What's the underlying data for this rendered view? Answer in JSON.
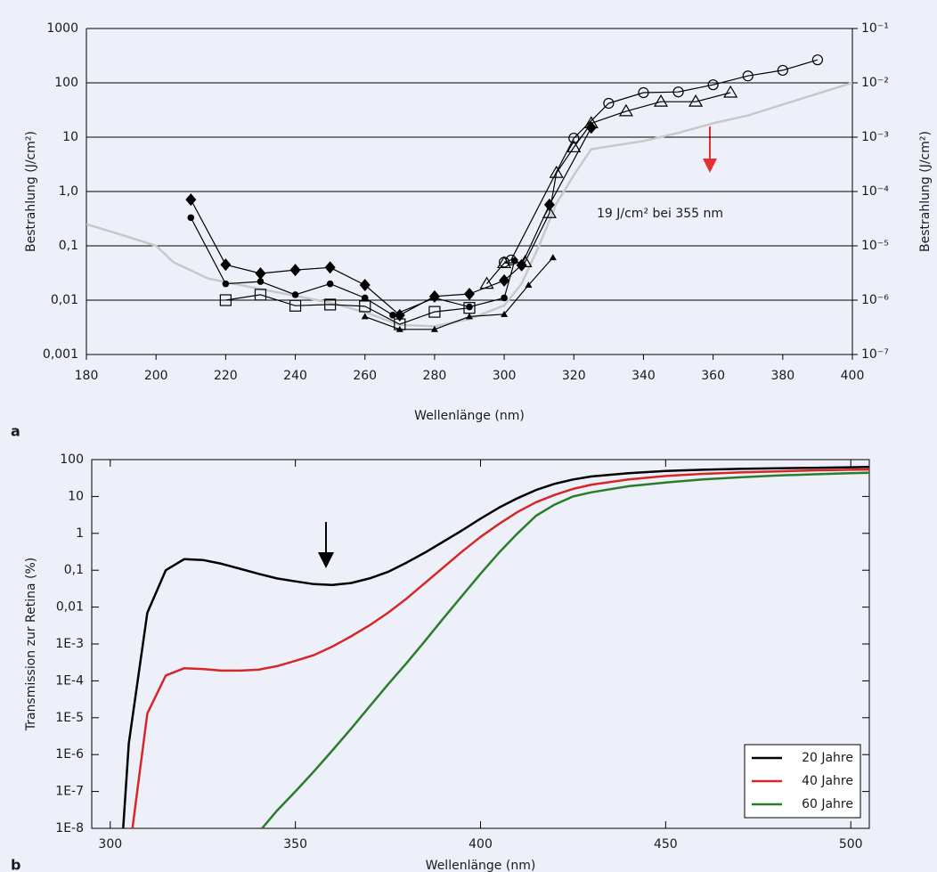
{
  "chart_data": [
    {
      "type": "line",
      "panel": "a",
      "xlabel": "Wellenlänge (nm)",
      "ylabel": "Bestrahlung (J/cm²)",
      "y2label": "Bestrahlung (J/cm²)",
      "annotation": "19 J/cm² bei 355 nm",
      "xlim": [
        180,
        400
      ],
      "xticks": [
        180,
        200,
        220,
        240,
        260,
        280,
        300,
        320,
        340,
        360,
        380,
        400
      ],
      "ylim": [
        0.001,
        1000
      ],
      "ylog": true,
      "grid": true,
      "yticks": [
        {
          "value": 0.001,
          "label": "0,001"
        },
        {
          "value": 0.01,
          "label": "0,01"
        },
        {
          "value": 0.1,
          "label": "0,1"
        },
        {
          "value": 1,
          "label": "1,0"
        },
        10,
        100,
        1000
      ],
      "y2lim": [
        1e-07,
        0.1
      ],
      "y2ticks": [
        {
          "value": 1e-07,
          "label": "10⁻⁷"
        },
        {
          "value": 1e-06,
          "label": "10⁻⁶"
        },
        {
          "value": 1e-05,
          "label": "10⁻⁵"
        },
        {
          "value": 0.0001,
          "label": "10⁻⁴"
        },
        {
          "value": 0.001,
          "label": "10⁻³"
        },
        {
          "value": 0.01,
          "label": "10⁻²"
        },
        {
          "value": 0.1,
          "label": "10⁻¹"
        }
      ],
      "series": [
        {
          "color": "#c8c8c8",
          "marker": "none",
          "x": [
            180,
            190,
            200,
            205,
            215,
            230,
            250,
            260,
            270,
            280,
            290,
            300,
            305,
            310,
            315,
            320,
            325,
            340,
            350,
            360,
            370,
            380,
            400
          ],
          "values": [
            0.25,
            0.16,
            0.1,
            0.05,
            0.025,
            0.016,
            0.009,
            0.006,
            0.0035,
            0.0033,
            0.0045,
            0.008,
            0.02,
            0.1,
            0.6,
            2,
            6,
            8.5,
            12,
            18,
            25,
            40,
            100
          ]
        },
        {
          "color": "#000000",
          "marker": "diamond",
          "x": [
            210,
            220,
            230,
            240,
            250,
            260,
            270,
            280,
            290,
            300,
            305,
            313,
            325
          ],
          "values": [
            0.71,
            0.045,
            0.031,
            0.036,
            0.04,
            0.019,
            0.0053,
            0.0117,
            0.013,
            0.023,
            0.044,
            0.57,
            15
          ]
        },
        {
          "color": "#000000",
          "marker": "dot",
          "x": [
            210,
            220,
            230,
            240,
            250,
            260,
            268,
            280,
            290,
            300,
            303
          ],
          "values": [
            0.33,
            0.02,
            0.022,
            0.0126,
            0.02,
            0.011,
            0.0053,
            0.011,
            0.0075,
            0.011,
            0.053
          ]
        },
        {
          "color": "#000000",
          "marker": "small-triangle",
          "x": [
            260,
            270,
            280,
            290,
            300,
            307,
            314
          ],
          "values": [
            0.005,
            0.0029,
            0.0029,
            0.005,
            0.0055,
            0.019,
            0.061
          ]
        },
        {
          "color": "#000000",
          "marker": "open-square",
          "x": [
            220,
            230,
            240,
            250,
            260,
            270,
            280,
            290
          ],
          "values": [
            0.01,
            0.0126,
            0.0079,
            0.0083,
            0.0077,
            0.0036,
            0.0061,
            0.0072
          ]
        },
        {
          "color": "#000000",
          "marker": "open-circle",
          "x": [
            300,
            302,
            320,
            330,
            340,
            350,
            360,
            370,
            380,
            390
          ],
          "values": [
            0.05,
            0.055,
            9.6,
            42,
            66,
            68,
            92,
            134,
            170,
            265
          ]
        },
        {
          "color": "#000000",
          "marker": "open-triangle",
          "x": [
            295,
            300,
            306,
            313,
            315,
            320,
            325,
            335,
            345,
            355,
            365
          ],
          "values": [
            0.02,
            0.048,
            0.05,
            0.4,
            2.2,
            6.5,
            18,
            30,
            45,
            45,
            66
          ]
        }
      ]
    },
    {
      "type": "line",
      "panel": "b",
      "xlabel": "Wellenlänge (nm)",
      "ylabel": "Transmission zur Retina (%)",
      "legend": "lower right",
      "xlim": [
        295,
        505
      ],
      "xticks": [
        300,
        350,
        400,
        450,
        500
      ],
      "ylim": [
        1e-08,
        100
      ],
      "ylog": true,
      "grid": false,
      "yticks": [
        {
          "value": 1e-08,
          "label": "1E-8"
        },
        {
          "value": 1e-07,
          "label": "1E-7"
        },
        {
          "value": 1e-06,
          "label": "1E-6"
        },
        {
          "value": 1e-05,
          "label": "1E-5"
        },
        {
          "value": 0.0001,
          "label": "1E-4"
        },
        {
          "value": 0.001,
          "label": "1E-3"
        },
        {
          "value": 0.01,
          "label": "0,01"
        },
        {
          "value": 0.1,
          "label": "0,1"
        },
        1,
        10,
        100
      ],
      "series": [
        {
          "name": "20 Jahre",
          "color": "#000000",
          "x": [
            303.5,
            305,
            310,
            315,
            320,
            325,
            330,
            335,
            340,
            345,
            350,
            355,
            360,
            365,
            370,
            375,
            380,
            385,
            390,
            395,
            400,
            405,
            410,
            415,
            420,
            425,
            430,
            440,
            450,
            460,
            470,
            480,
            490,
            500,
            505
          ],
          "values": [
            1e-08,
            2e-06,
            0.007,
            0.1,
            0.2,
            0.19,
            0.15,
            0.11,
            0.08,
            0.06,
            0.05,
            0.042,
            0.04,
            0.045,
            0.06,
            0.09,
            0.16,
            0.3,
            0.6,
            1.2,
            2.5,
            5,
            9,
            15,
            22,
            29,
            35,
            43,
            49,
            53,
            56,
            58,
            60,
            62,
            63
          ]
        },
        {
          "name": "40 Jahre",
          "color": "#d62728",
          "x": [
            306,
            310,
            315,
            320,
            325,
            330,
            335,
            340,
            345,
            350,
            355,
            360,
            365,
            370,
            375,
            380,
            385,
            390,
            395,
            400,
            405,
            410,
            415,
            420,
            425,
            430,
            440,
            450,
            460,
            470,
            480,
            490,
            500,
            505
          ],
          "values": [
            1e-08,
            1.3e-05,
            0.00014,
            0.00022,
            0.00021,
            0.00019,
            0.00019,
            0.0002,
            0.00025,
            0.00035,
            0.0005,
            0.00085,
            0.0016,
            0.0032,
            0.007,
            0.017,
            0.045,
            0.12,
            0.32,
            0.8,
            1.8,
            3.8,
            7,
            11,
            16,
            21,
            29,
            36,
            41,
            45,
            48,
            51,
            53,
            54
          ]
        },
        {
          "name": "60 Jahre",
          "color": "#2a7d2a",
          "x": [
            341,
            345,
            350,
            355,
            360,
            365,
            370,
            375,
            380,
            385,
            390,
            395,
            400,
            405,
            410,
            415,
            420,
            425,
            430,
            440,
            450,
            460,
            470,
            480,
            490,
            500,
            505
          ],
          "values": [
            1e-08,
            3e-08,
            1e-07,
            3.5e-07,
            1.3e-06,
            5e-06,
            2e-05,
            8e-05,
            0.0003,
            0.0012,
            0.005,
            0.02,
            0.08,
            0.3,
            1,
            3,
            6,
            10,
            13,
            19,
            24,
            29,
            33,
            37,
            40,
            43,
            44
          ]
        }
      ]
    }
  ]
}
